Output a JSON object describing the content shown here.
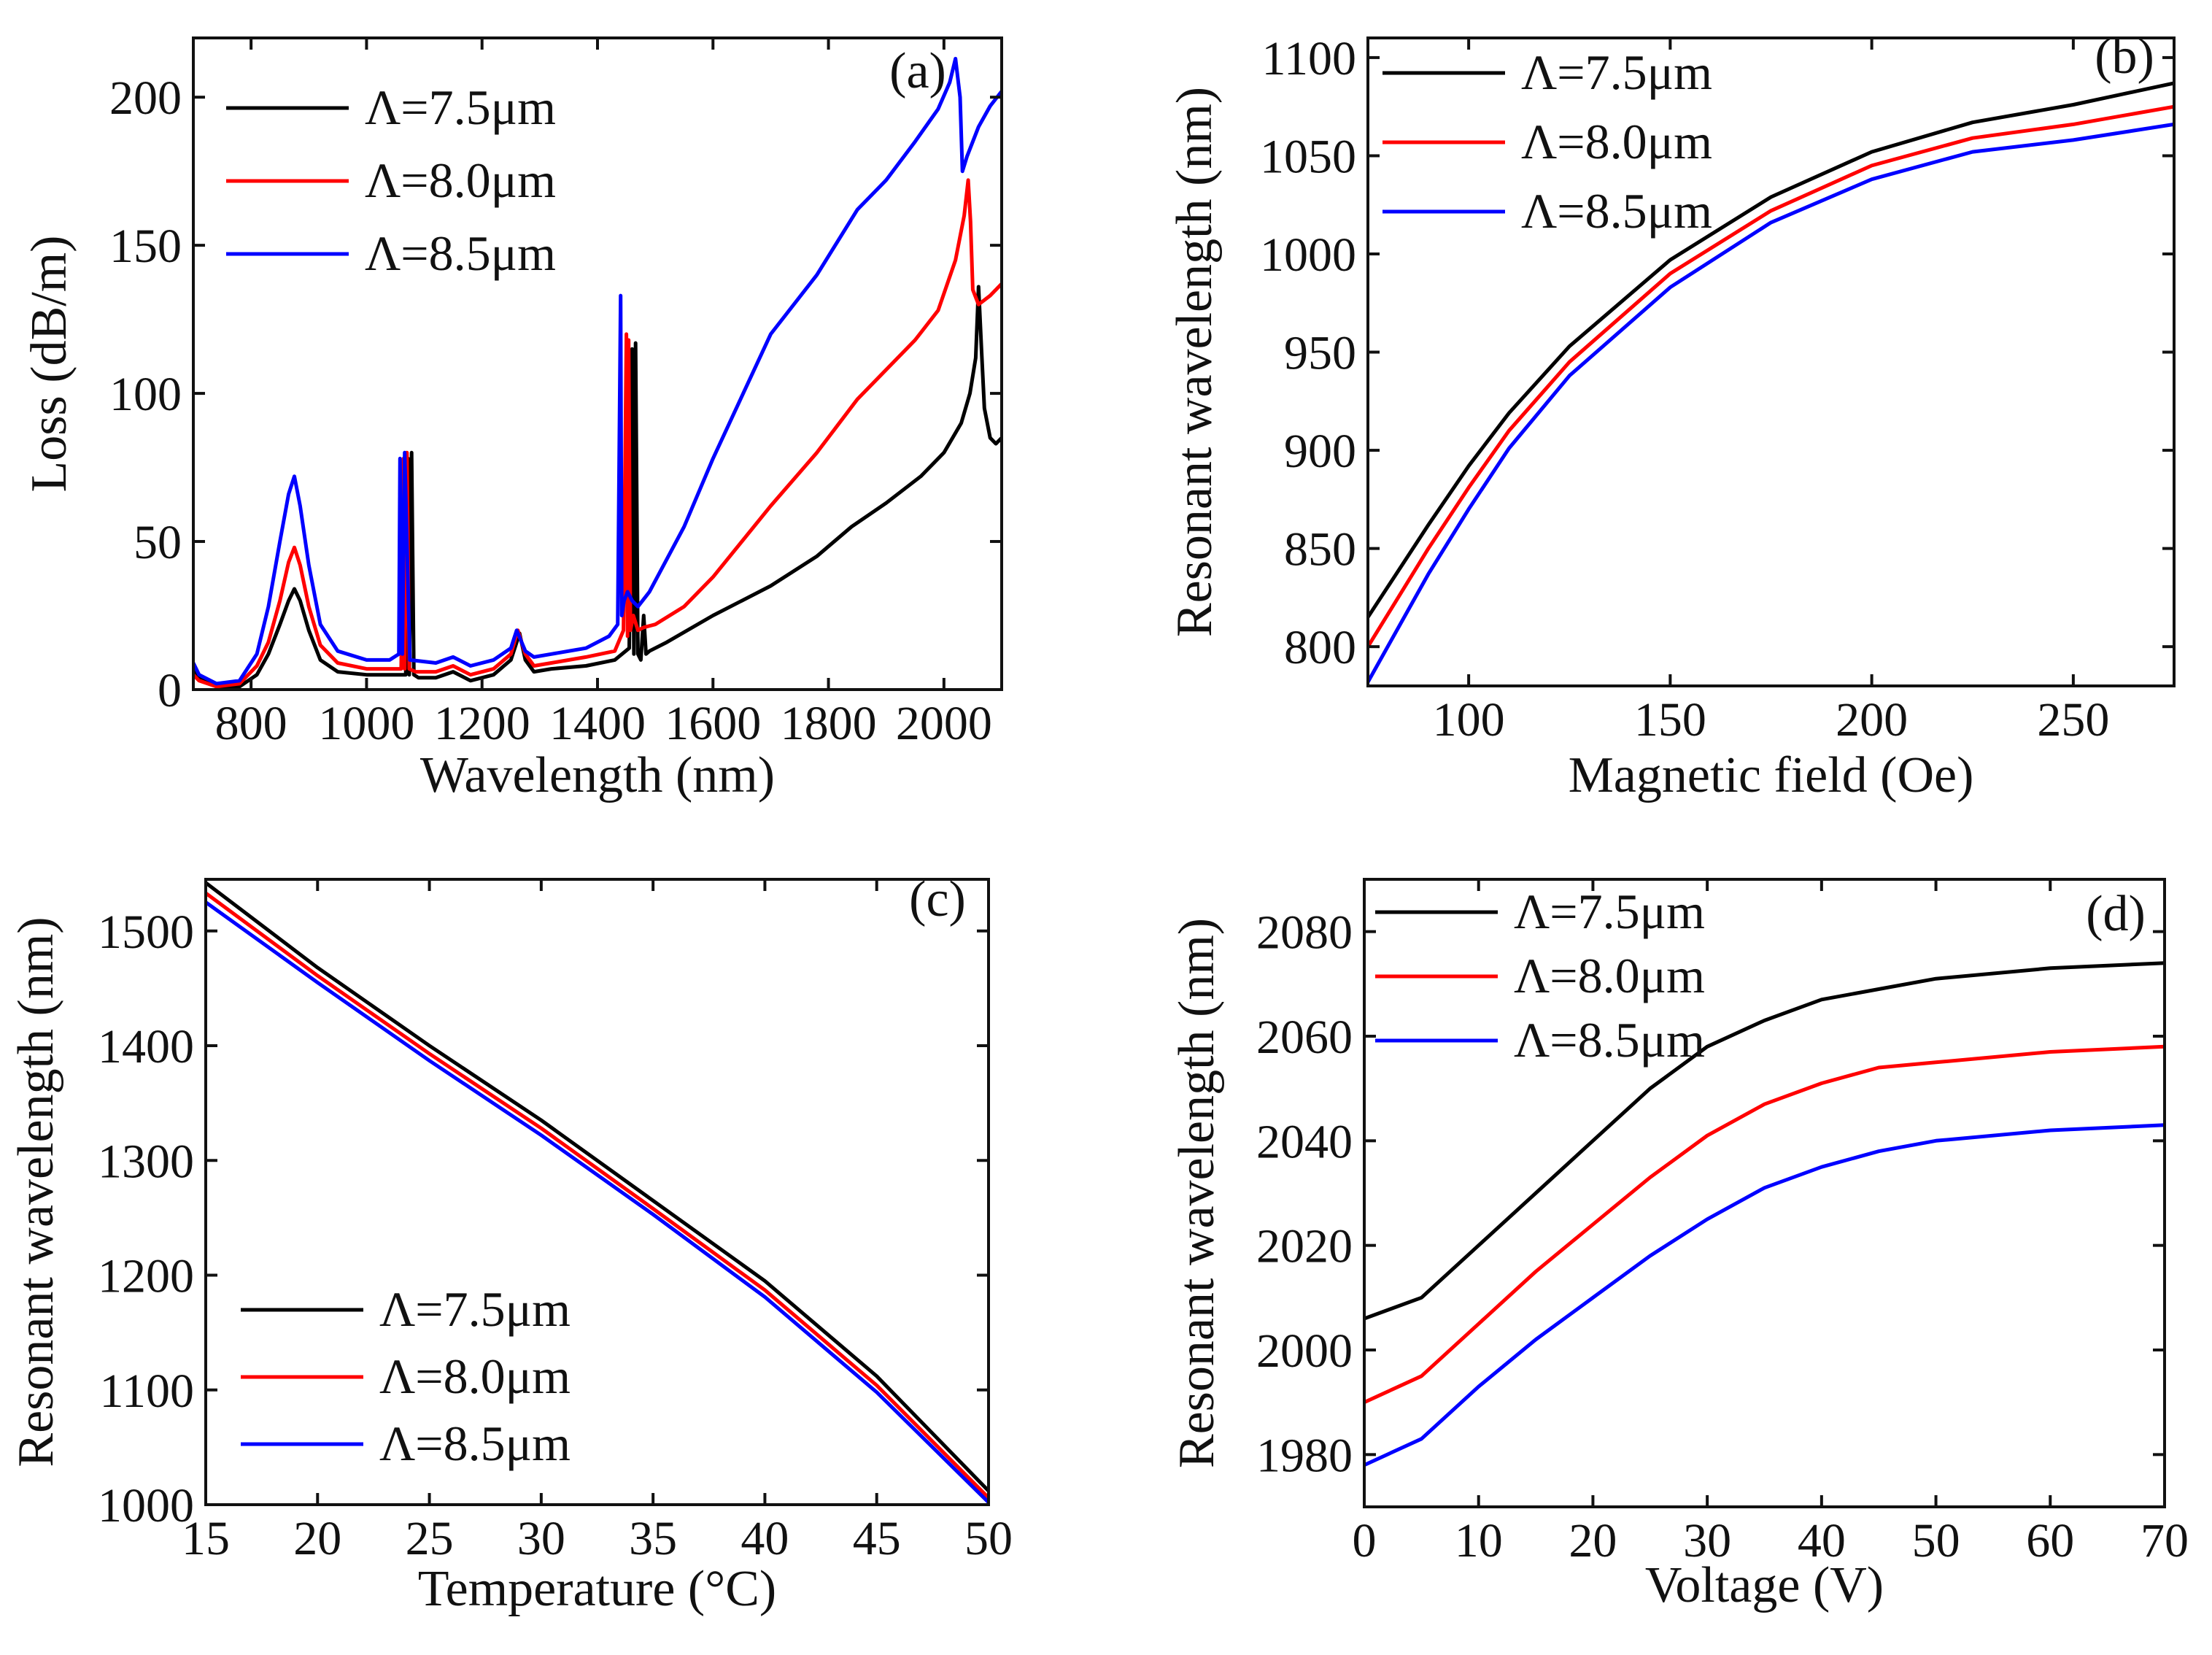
{
  "chart_data": [
    {
      "panel": "(a)",
      "type": "line",
      "xlabel": "Wavelength (nm)",
      "ylabel": "Loss (dB/m)",
      "xlim": [
        700,
        2100
      ],
      "ylim": [
        0,
        220
      ],
      "xticks": [
        800,
        1000,
        1200,
        1400,
        1600,
        1800,
        2000
      ],
      "xtick_labels": [
        "800",
        "1000",
        "1200",
        "1400",
        "1600",
        "1800",
        "2000"
      ],
      "yticks": [
        0,
        50,
        100,
        150,
        200
      ],
      "ytick_labels": [
        "0",
        "50",
        "100",
        "150",
        "200"
      ],
      "legend_position": "top-left",
      "series": [
        {
          "name": "Λ=7.5μm",
          "color": "#000000",
          "x": [
            700,
            710,
            740,
            780,
            810,
            830,
            850,
            865,
            875,
            885,
            900,
            920,
            950,
            1000,
            1040,
            1068,
            1072,
            1074,
            1078,
            1082,
            1090,
            1120,
            1150,
            1180,
            1220,
            1250,
            1265,
            1275,
            1290,
            1320,
            1380,
            1430,
            1455,
            1460,
            1463,
            1466,
            1470,
            1475,
            1480,
            1484,
            1490,
            1520,
            1600,
            1700,
            1780,
            1840,
            1900,
            1960,
            2000,
            2030,
            2045,
            2055,
            2060,
            2065,
            2070,
            2080,
            2090,
            2100
          ],
          "y": [
            7,
            4,
            1,
            1,
            5,
            12,
            22,
            30,
            34,
            30,
            20,
            10,
            6,
            5,
            5,
            5,
            78,
            5,
            80,
            5,
            4,
            4,
            6,
            3,
            5,
            10,
            19,
            10,
            6,
            7,
            8,
            10,
            14,
            115,
            12,
            117,
            12,
            10,
            25,
            12,
            13,
            16,
            25,
            35,
            45,
            55,
            63,
            72,
            80,
            90,
            100,
            112,
            136,
            115,
            95,
            85,
            83,
            85
          ]
        },
        {
          "name": "Λ=8.0μm",
          "color": "#ff0000",
          "x": [
            700,
            710,
            740,
            780,
            810,
            830,
            850,
            865,
            875,
            885,
            900,
            920,
            950,
            1000,
            1040,
            1060,
            1064,
            1066,
            1070,
            1074,
            1085,
            1120,
            1150,
            1180,
            1220,
            1250,
            1262,
            1275,
            1290,
            1320,
            1380,
            1430,
            1445,
            1450,
            1452,
            1454,
            1457,
            1462,
            1470,
            1480,
            1500,
            1550,
            1600,
            1700,
            1780,
            1850,
            1900,
            1950,
            1990,
            2020,
            2035,
            2042,
            2046,
            2050,
            2060,
            2080,
            2100
          ],
          "y": [
            5,
            3,
            1,
            2,
            8,
            16,
            30,
            43,
            48,
            42,
            28,
            15,
            9,
            7,
            7,
            7,
            78,
            7,
            80,
            7,
            6,
            6,
            8,
            5,
            7,
            12,
            20,
            12,
            8,
            9,
            11,
            13,
            20,
            120,
            18,
            118,
            20,
            25,
            20,
            21,
            22,
            28,
            38,
            62,
            80,
            98,
            108,
            118,
            128,
            145,
            160,
            172,
            158,
            135,
            130,
            133,
            137
          ]
        },
        {
          "name": "Λ=8.5μm",
          "color": "#0000ff",
          "x": [
            700,
            710,
            740,
            780,
            810,
            830,
            850,
            865,
            875,
            885,
            900,
            920,
            950,
            1000,
            1040,
            1056,
            1058,
            1062,
            1066,
            1075,
            1120,
            1150,
            1180,
            1220,
            1250,
            1260,
            1275,
            1290,
            1320,
            1380,
            1420,
            1435,
            1440,
            1442,
            1446,
            1452,
            1460,
            1470,
            1490,
            1550,
            1600,
            1700,
            1780,
            1850,
            1900,
            1950,
            1990,
            2010,
            2020,
            2028,
            2032,
            2040,
            2060,
            2080,
            2100
          ],
          "y": [
            9,
            5,
            2,
            3,
            12,
            28,
            50,
            66,
            72,
            62,
            42,
            22,
            13,
            10,
            10,
            12,
            78,
            12,
            80,
            10,
            9,
            11,
            8,
            10,
            14,
            20,
            13,
            11,
            12,
            14,
            18,
            22,
            133,
            25,
            30,
            33,
            30,
            28,
            33,
            55,
            78,
            120,
            140,
            162,
            172,
            185,
            196,
            205,
            213,
            200,
            175,
            180,
            190,
            197,
            202
          ]
        }
      ]
    },
    {
      "panel": "(b)",
      "type": "line",
      "xlabel": "Magnetic field (Oe)",
      "ylabel": "Resonant wavelength (nm)",
      "xlim": [
        75,
        275
      ],
      "ylim": [
        780,
        1110
      ],
      "xticks": [
        100,
        150,
        200,
        250
      ],
      "xtick_labels": [
        "100",
        "150",
        "200",
        "250"
      ],
      "yticks": [
        800,
        850,
        900,
        950,
        1000,
        1050,
        1100
      ],
      "ytick_labels": [
        "800",
        "850",
        "900",
        "950",
        "1000",
        "1050",
        "1100"
      ],
      "legend_position": "top-left",
      "series": [
        {
          "name": "Λ=7.5μm",
          "color": "#000000",
          "x": [
            75,
            90,
            100,
            110,
            125,
            150,
            175,
            200,
            225,
            250,
            275
          ],
          "y": [
            815,
            862,
            892,
            919,
            953,
            997,
            1029,
            1052,
            1067,
            1076,
            1087
          ]
        },
        {
          "name": "Λ=8.0μm",
          "color": "#ff0000",
          "x": [
            75,
            90,
            100,
            110,
            125,
            150,
            175,
            200,
            225,
            250,
            275
          ],
          "y": [
            800,
            850,
            881,
            910,
            945,
            990,
            1022,
            1045,
            1059,
            1066,
            1075
          ]
        },
        {
          "name": "Λ=8.5μm",
          "color": "#0000ff",
          "x": [
            75,
            90,
            100,
            110,
            125,
            150,
            175,
            200,
            225,
            250,
            275
          ],
          "y": [
            782,
            837,
            870,
            901,
            938,
            983,
            1016,
            1038,
            1052,
            1058,
            1066
          ]
        }
      ]
    },
    {
      "panel": "(c)",
      "type": "line",
      "xlabel": "Temperature (°C)",
      "ylabel": "Resonant wavelength (nm)",
      "xlim": [
        15,
        50
      ],
      "ylim": [
        1000,
        1545
      ],
      "xticks": [
        15,
        20,
        25,
        30,
        35,
        40,
        45,
        50
      ],
      "xtick_labels": [
        "15",
        "20",
        "25",
        "30",
        "35",
        "40",
        "45",
        "50"
      ],
      "yticks": [
        1000,
        1100,
        1200,
        1300,
        1400,
        1500
      ],
      "ytick_labels": [
        "1000",
        "1100",
        "1200",
        "1300",
        "1400",
        "1500"
      ],
      "legend_position": "bottom-left",
      "series": [
        {
          "name": "Λ=7.5μm",
          "color": "#000000",
          "x": [
            15,
            20,
            25,
            30,
            35,
            40,
            45,
            50
          ],
          "y": [
            1542,
            1468,
            1400,
            1335,
            1265,
            1195,
            1112,
            1012
          ]
        },
        {
          "name": "Λ=8.0μm",
          "color": "#ff0000",
          "x": [
            15,
            20,
            25,
            30,
            35,
            40,
            45,
            50
          ],
          "y": [
            1533,
            1461,
            1393,
            1328,
            1258,
            1187,
            1104,
            1006
          ]
        },
        {
          "name": "Λ=8.5μm",
          "color": "#0000ff",
          "x": [
            15,
            20,
            25,
            30,
            35,
            40,
            45,
            50
          ],
          "y": [
            1525,
            1455,
            1387,
            1322,
            1253,
            1181,
            1098,
            1002
          ]
        }
      ]
    },
    {
      "panel": "(d)",
      "type": "line",
      "xlabel": "Voltage (V)",
      "ylabel": "Resonant wavelength (nm)",
      "xlim": [
        0,
        70
      ],
      "ylim": [
        1970,
        2090
      ],
      "xticks": [
        0,
        10,
        20,
        30,
        40,
        50,
        60,
        70
      ],
      "xtick_labels": [
        "0",
        "10",
        "20",
        "30",
        "40",
        "50",
        "60",
        "70"
      ],
      "yticks": [
        1980,
        2000,
        2020,
        2040,
        2060,
        2080
      ],
      "ytick_labels": [
        "1980",
        "2000",
        "2020",
        "2040",
        "2060",
        "2080"
      ],
      "legend_position": "top-left",
      "series": [
        {
          "name": "Λ=7.5μm",
          "color": "#000000",
          "x": [
            0,
            5,
            10,
            15,
            20,
            25,
            30,
            35,
            40,
            45,
            50,
            60,
            70
          ],
          "y": [
            2006,
            2010,
            2020,
            2030,
            2040,
            2050,
            2058,
            2063,
            2067,
            2069,
            2071,
            2073,
            2074
          ]
        },
        {
          "name": "Λ=8.0μm",
          "color": "#ff0000",
          "x": [
            0,
            5,
            10,
            15,
            20,
            25,
            30,
            35,
            40,
            45,
            50,
            60,
            70
          ],
          "y": [
            1990,
            1995,
            2005,
            2015,
            2024,
            2033,
            2041,
            2047,
            2051,
            2054,
            2055,
            2057,
            2058
          ]
        },
        {
          "name": "Λ=8.5μm",
          "color": "#0000ff",
          "x": [
            0,
            5,
            10,
            15,
            20,
            25,
            30,
            35,
            40,
            45,
            50,
            60,
            70
          ],
          "y": [
            1978,
            1983,
            1993,
            2002,
            2010,
            2018,
            2025,
            2031,
            2035,
            2038,
            2040,
            2042,
            2043
          ]
        }
      ]
    }
  ]
}
